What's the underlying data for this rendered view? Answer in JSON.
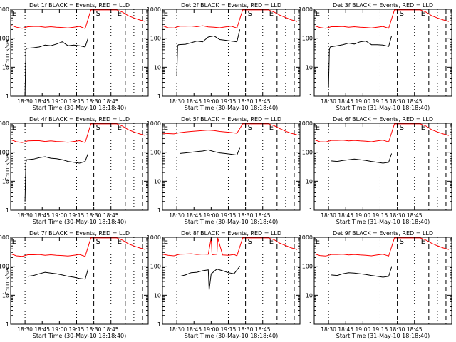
{
  "chart_data": [
    {
      "type": "line",
      "title": "Det 1f BLACK = Events, RED = LLD",
      "xlabel": "Start Time (30-May-10 18:18:40)",
      "ylabel": "Counts/sec",
      "yscale": "log",
      "ylim": [
        1,
        1000
      ],
      "ytick_labels": [
        "1",
        "10",
        "100",
        "1000"
      ],
      "xtick_labels": [
        "18:30",
        "18:45",
        "19:00",
        "19:15",
        "18:30",
        "18:45"
      ],
      "markers": [
        "E",
        "S",
        "E"
      ],
      "series": [
        {
          "color": "#ff0000",
          "x": [
            0,
            2,
            4,
            6,
            8,
            10,
            12,
            14,
            16,
            18,
            20,
            22,
            24,
            26,
            28,
            29,
            30,
            31,
            33,
            35,
            37,
            39,
            41,
            43,
            45,
            47
          ],
          "y": [
            280,
            240,
            220,
            250,
            255,
            255,
            240,
            250,
            240,
            235,
            225,
            240,
            255,
            215,
            950,
            950,
            950,
            950,
            950,
            950,
            950,
            800,
            600,
            500,
            430,
            380
          ]
        },
        {
          "color": "#000000",
          "x": [
            5,
            5.3,
            5.6,
            8,
            10,
            12,
            14,
            16,
            18,
            20,
            22,
            24,
            26,
            27
          ],
          "y": [
            1,
            40,
            45,
            47,
            50,
            58,
            55,
            63,
            75,
            55,
            58,
            55,
            50,
            100
          ]
        }
      ]
    },
    {
      "type": "line",
      "title": "Det 2f BLACK = Events, RED = LLD",
      "xlabel": "Start Time (30-May-10 18:18:40)",
      "ylabel": "",
      "yscale": "log",
      "ylim": [
        1,
        1000
      ],
      "ytick_labels": [
        "1",
        "10",
        "100",
        "1000"
      ],
      "xtick_labels": [
        "18:30",
        "18:45",
        "19:00",
        "19:15",
        "18:30",
        "18:45"
      ],
      "markers": [
        "E",
        "S",
        "E"
      ],
      "series": [
        {
          "color": "#ff0000",
          "x": [
            0,
            2,
            4,
            6,
            8,
            10,
            12,
            14,
            16,
            18,
            20,
            22,
            24,
            26,
            28,
            29,
            30,
            31,
            33,
            35,
            37,
            39,
            41,
            43,
            45,
            47
          ],
          "y": [
            270,
            230,
            225,
            260,
            260,
            265,
            250,
            270,
            245,
            240,
            230,
            245,
            260,
            225,
            950,
            950,
            950,
            950,
            950,
            950,
            950,
            800,
            620,
            520,
            430,
            380
          ]
        },
        {
          "color": "#000000",
          "x": [
            5,
            5.3,
            5.6,
            8,
            10,
            12,
            14,
            16,
            18,
            20,
            22,
            24,
            26,
            27
          ],
          "y": [
            5,
            55,
            60,
            62,
            70,
            80,
            75,
            110,
            120,
            90,
            85,
            80,
            75,
            200
          ]
        }
      ]
    },
    {
      "type": "line",
      "title": "Det 3f BLACK = Events, RED = LLD",
      "xlabel": "Start Time (31-May-10 18:18:40)",
      "ylabel": "",
      "yscale": "log",
      "ylim": [
        1,
        1000
      ],
      "ytick_labels": [
        "1",
        "10",
        "100",
        "1000"
      ],
      "xtick_labels": [
        "18:30",
        "18:45",
        "19:00",
        "19:15",
        "18:30",
        "18:45"
      ],
      "markers": [
        "E",
        "S",
        "E"
      ],
      "series": [
        {
          "color": "#ff0000",
          "x": [
            0,
            2,
            4,
            6,
            8,
            10,
            12,
            14,
            16,
            18,
            20,
            22,
            24,
            26,
            28,
            29,
            30,
            31,
            33,
            35,
            37,
            39,
            41,
            43,
            45,
            47
          ],
          "y": [
            270,
            235,
            220,
            250,
            250,
            255,
            240,
            250,
            240,
            235,
            225,
            240,
            255,
            220,
            950,
            950,
            950,
            950,
            950,
            950,
            950,
            800,
            600,
            500,
            430,
            380
          ]
        },
        {
          "color": "#000000",
          "x": [
            5,
            5.3,
            5.6,
            8,
            10,
            12,
            14,
            16,
            18,
            20,
            22,
            24,
            26,
            27
          ],
          "y": [
            2,
            40,
            50,
            55,
            60,
            68,
            63,
            75,
            80,
            60,
            60,
            58,
            52,
            120
          ]
        }
      ]
    },
    {
      "type": "line",
      "title": "Det 4f BLACK = Events, RED = LLD",
      "xlabel": "Start Time (30-May-10 18:18:40)",
      "ylabel": "Counts/sec",
      "yscale": "log",
      "ylim": [
        1,
        1000
      ],
      "ytick_labels": [
        "1",
        "10",
        "100",
        "1000"
      ],
      "xtick_labels": [
        "18:30",
        "18:45",
        "19:00",
        "19:15",
        "18:30",
        "18:45"
      ],
      "markers": [
        "E",
        "S",
        "E"
      ],
      "series": [
        {
          "color": "#ff0000",
          "x": [
            0,
            2,
            4,
            6,
            8,
            10,
            12,
            14,
            16,
            18,
            20,
            22,
            24,
            26,
            28,
            29,
            30,
            31,
            33,
            35,
            37,
            39,
            41,
            43,
            45,
            47
          ],
          "y": [
            270,
            230,
            215,
            245,
            250,
            250,
            235,
            245,
            235,
            230,
            220,
            235,
            250,
            215,
            950,
            950,
            950,
            950,
            950,
            950,
            950,
            800,
            600,
            500,
            430,
            380
          ]
        },
        {
          "color": "#000000",
          "x": [
            5,
            5.3,
            5.6,
            8,
            10,
            12,
            14,
            16,
            18,
            20,
            22,
            24,
            26,
            27
          ],
          "y": [
            2,
            45,
            55,
            58,
            65,
            70,
            62,
            60,
            55,
            48,
            45,
            42,
            48,
            90
          ]
        }
      ]
    },
    {
      "type": "line",
      "title": "Det 5f BLACK = Events, RED = LLD",
      "xlabel": "Start Time (30-May-10 18:18:40)",
      "ylabel": "",
      "yscale": "log",
      "ylim": [
        1,
        1000
      ],
      "ytick_labels": [
        "1",
        "10",
        "100",
        "1000"
      ],
      "xtick_labels": [
        "18:30",
        "18:45",
        "19:00",
        "19:15",
        "18:30",
        "18:45"
      ],
      "markers": [
        "E",
        "S",
        "E"
      ],
      "series": [
        {
          "color": "#ff0000",
          "x": [
            0,
            2,
            4,
            6,
            8,
            10,
            12,
            14,
            16,
            18,
            20,
            22,
            24,
            26,
            28,
            29,
            30,
            31,
            33,
            35,
            37,
            39,
            41,
            43,
            45,
            47
          ],
          "y": [
            450,
            440,
            430,
            470,
            500,
            520,
            540,
            560,
            580,
            560,
            520,
            500,
            480,
            450,
            950,
            950,
            950,
            950,
            950,
            950,
            950,
            820,
            650,
            530,
            450,
            400
          ]
        },
        {
          "color": "#000000",
          "x": [
            6,
            8,
            10,
            12,
            14,
            16,
            18,
            20,
            22,
            24,
            26,
            27
          ],
          "y": [
            90,
            95,
            100,
            105,
            110,
            120,
            105,
            95,
            90,
            85,
            80,
            140
          ]
        }
      ]
    },
    {
      "type": "line",
      "title": "Det 6f BLACK = Events, RED = LLD",
      "xlabel": "Start Time (31-May-10 18:18:40)",
      "ylabel": "",
      "yscale": "log",
      "ylim": [
        1,
        1000
      ],
      "ytick_labels": [
        "1",
        "10",
        "100",
        "1000"
      ],
      "xtick_labels": [
        "18:30",
        "18:45",
        "19:00",
        "19:15",
        "18:30",
        "18:45"
      ],
      "markers": [
        "E",
        "S",
        "E"
      ],
      "series": [
        {
          "color": "#ff0000",
          "x": [
            0,
            2,
            4,
            6,
            8,
            10,
            12,
            14,
            16,
            18,
            20,
            22,
            24,
            26,
            28,
            29,
            30,
            31,
            33,
            35,
            37,
            39,
            41,
            43,
            45,
            47
          ],
          "y": [
            270,
            230,
            225,
            255,
            255,
            260,
            245,
            255,
            245,
            240,
            230,
            245,
            260,
            225,
            950,
            950,
            950,
            950,
            950,
            950,
            950,
            800,
            600,
            500,
            430,
            380
          ]
        },
        {
          "color": "#000000",
          "x": [
            6,
            8,
            10,
            12,
            14,
            16,
            18,
            20,
            22,
            24,
            26,
            27
          ],
          "y": [
            50,
            48,
            52,
            55,
            58,
            55,
            52,
            48,
            45,
            42,
            45,
            90
          ]
        }
      ]
    },
    {
      "type": "line",
      "title": "Det 7f BLACK = Events, RED = LLD",
      "xlabel": "Start Time (30-May-10 18:18:40)",
      "ylabel": "Counts/sec",
      "yscale": "log",
      "ylim": [
        1,
        1000
      ],
      "ytick_labels": [
        "1",
        "10",
        "100",
        "1000"
      ],
      "xtick_labels": [
        "18:30",
        "18:45",
        "19:00",
        "19:15",
        "18:30",
        "18:45"
      ],
      "markers": [
        "E",
        "S",
        "E"
      ],
      "series": [
        {
          "color": "#ff0000",
          "x": [
            0,
            2,
            4,
            6,
            8,
            10,
            12,
            14,
            16,
            18,
            20,
            22,
            24,
            26,
            28,
            29,
            30,
            31,
            33,
            35,
            37,
            39,
            41,
            43,
            45,
            47
          ],
          "y": [
            270,
            230,
            220,
            250,
            250,
            255,
            240,
            250,
            240,
            235,
            225,
            240,
            255,
            220,
            950,
            950,
            950,
            950,
            950,
            950,
            950,
            800,
            600,
            500,
            430,
            380
          ]
        },
        {
          "color": "#000000",
          "x": [
            6,
            8,
            10,
            12,
            14,
            16,
            18,
            20,
            22,
            24,
            26,
            27
          ],
          "y": [
            45,
            48,
            55,
            62,
            58,
            55,
            50,
            45,
            42,
            38,
            36,
            80
          ]
        }
      ]
    },
    {
      "type": "line",
      "title": "Det 8f BLACK = Events, RED = LLD",
      "xlabel": "Start Time (30-May-10 18:18:40)",
      "ylabel": "",
      "yscale": "log",
      "ylim": [
        1,
        1000
      ],
      "ytick_labels": [
        "1",
        "10",
        "100",
        "1000"
      ],
      "xtick_labels": [
        "18:30",
        "18:45",
        "19:00",
        "19:15",
        "18:30",
        "18:45"
      ],
      "markers": [
        "E",
        "S",
        "E"
      ],
      "series": [
        {
          "color": "#ff0000",
          "x": [
            0,
            2,
            4,
            6,
            8,
            10,
            12,
            14,
            16,
            17,
            17.3,
            19,
            19.3,
            21,
            23,
            25,
            26,
            28,
            29,
            30,
            31,
            33,
            35,
            37,
            39,
            41,
            43,
            45,
            47
          ],
          "y": [
            260,
            240,
            230,
            260,
            265,
            270,
            255,
            265,
            260,
            950,
            250,
            260,
            950,
            245,
            240,
            255,
            230,
            950,
            950,
            950,
            950,
            950,
            950,
            950,
            820,
            620,
            520,
            430,
            380
          ]
        },
        {
          "color": "#000000",
          "x": [
            6,
            8,
            10,
            12,
            14,
            16,
            16.3,
            17,
            17.5,
            19,
            21,
            23,
            25,
            27
          ],
          "y": [
            45,
            50,
            60,
            62,
            70,
            75,
            15,
            55,
            60,
            80,
            70,
            60,
            55,
            100
          ]
        }
      ]
    },
    {
      "type": "line",
      "title": "Det 9f BLACK = Events, RED = LLD",
      "xlabel": "Start Time (31-May-10 18:18:40)",
      "ylabel": "",
      "yscale": "log",
      "ylim": [
        1,
        1000
      ],
      "ytick_labels": [
        "1",
        "10",
        "100",
        "1000"
      ],
      "xtick_labels": [
        "18:30",
        "18:45",
        "19:00",
        "19:15",
        "18:30",
        "18:45"
      ],
      "markers": [
        "E",
        "S",
        "E"
      ],
      "series": [
        {
          "color": "#ff0000",
          "x": [
            0,
            2,
            4,
            6,
            8,
            10,
            12,
            14,
            16,
            18,
            20,
            22,
            24,
            26,
            28,
            29,
            30,
            31,
            33,
            35,
            37,
            39,
            41,
            43,
            45,
            47
          ],
          "y": [
            270,
            235,
            225,
            255,
            255,
            260,
            245,
            255,
            245,
            240,
            230,
            245,
            260,
            225,
            950,
            950,
            950,
            950,
            950,
            950,
            950,
            800,
            620,
            510,
            430,
            380
          ]
        },
        {
          "color": "#000000",
          "x": [
            6,
            8,
            10,
            12,
            14,
            16,
            18,
            20,
            22,
            24,
            26,
            27
          ],
          "y": [
            50,
            48,
            55,
            60,
            58,
            55,
            52,
            48,
            45,
            42,
            45,
            95
          ]
        }
      ]
    }
  ]
}
